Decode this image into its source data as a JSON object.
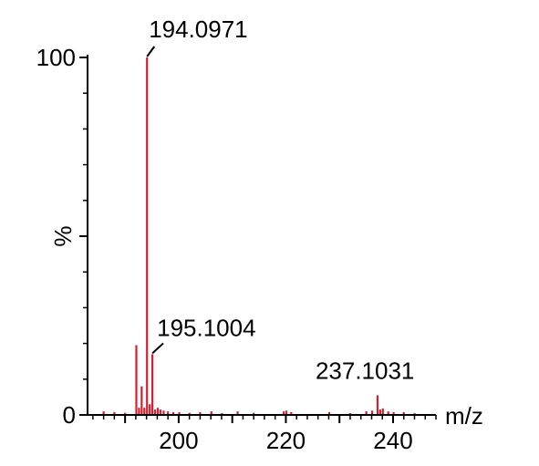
{
  "chart_data": {
    "type": "bar",
    "title": "",
    "xlabel": "m/z",
    "ylabel": "%",
    "xlim": [
      183,
      248
    ],
    "ylim": [
      0,
      100
    ],
    "grid": false,
    "x_ticks": [
      200,
      220,
      240
    ],
    "x_tick_labels": [
      "200",
      "220",
      "240"
    ],
    "y_ticks": [
      0,
      100
    ],
    "y_tick_labels": [
      "0",
      "100"
    ],
    "colors": {
      "peaks": "#cc2233",
      "axes": "#000000"
    },
    "peaks": [
      {
        "x": 186.0,
        "y": 1.0
      },
      {
        "x": 188.0,
        "y": 0.8
      },
      {
        "x": 190.0,
        "y": 0.6
      },
      {
        "x": 192.1,
        "y": 19.5
      },
      {
        "x": 192.6,
        "y": 2.0
      },
      {
        "x": 193.1,
        "y": 8.0
      },
      {
        "x": 193.6,
        "y": 2.0
      },
      {
        "x": 194.0971,
        "y": 100
      },
      {
        "x": 194.6,
        "y": 3.0
      },
      {
        "x": 195.1004,
        "y": 17.0
      },
      {
        "x": 195.6,
        "y": 1.5
      },
      {
        "x": 196.1,
        "y": 2.0
      },
      {
        "x": 196.6,
        "y": 1.5
      },
      {
        "x": 197.2,
        "y": 1.2
      },
      {
        "x": 198.0,
        "y": 1.0
      },
      {
        "x": 199.0,
        "y": 0.8
      },
      {
        "x": 200.1,
        "y": 0.8
      },
      {
        "x": 202.0,
        "y": 0.6
      },
      {
        "x": 204.0,
        "y": 0.8
      },
      {
        "x": 206.1,
        "y": 1.0
      },
      {
        "x": 208.1,
        "y": 0.5
      },
      {
        "x": 211.0,
        "y": 1.0
      },
      {
        "x": 214.0,
        "y": 0.6
      },
      {
        "x": 219.6,
        "y": 1.0
      },
      {
        "x": 220.1,
        "y": 1.2
      },
      {
        "x": 221.0,
        "y": 0.8
      },
      {
        "x": 228.1,
        "y": 0.8
      },
      {
        "x": 232.0,
        "y": 0.5
      },
      {
        "x": 235.0,
        "y": 1.0
      },
      {
        "x": 236.1,
        "y": 1.2
      },
      {
        "x": 237.1031,
        "y": 5.5
      },
      {
        "x": 237.6,
        "y": 1.5
      },
      {
        "x": 238.1,
        "y": 1.8
      },
      {
        "x": 239.1,
        "y": 1.0
      },
      {
        "x": 240.1,
        "y": 0.8
      },
      {
        "x": 242.0,
        "y": 0.8
      },
      {
        "x": 244.0,
        "y": 0.5
      }
    ],
    "annotations": [
      {
        "text": "194.0971",
        "x": 194.0971,
        "y": 100
      },
      {
        "text": "195.1004",
        "x": 195.1004,
        "y": 17.0
      },
      {
        "text": "237.1031",
        "x": 237.1031,
        "y": 5.5
      }
    ]
  }
}
